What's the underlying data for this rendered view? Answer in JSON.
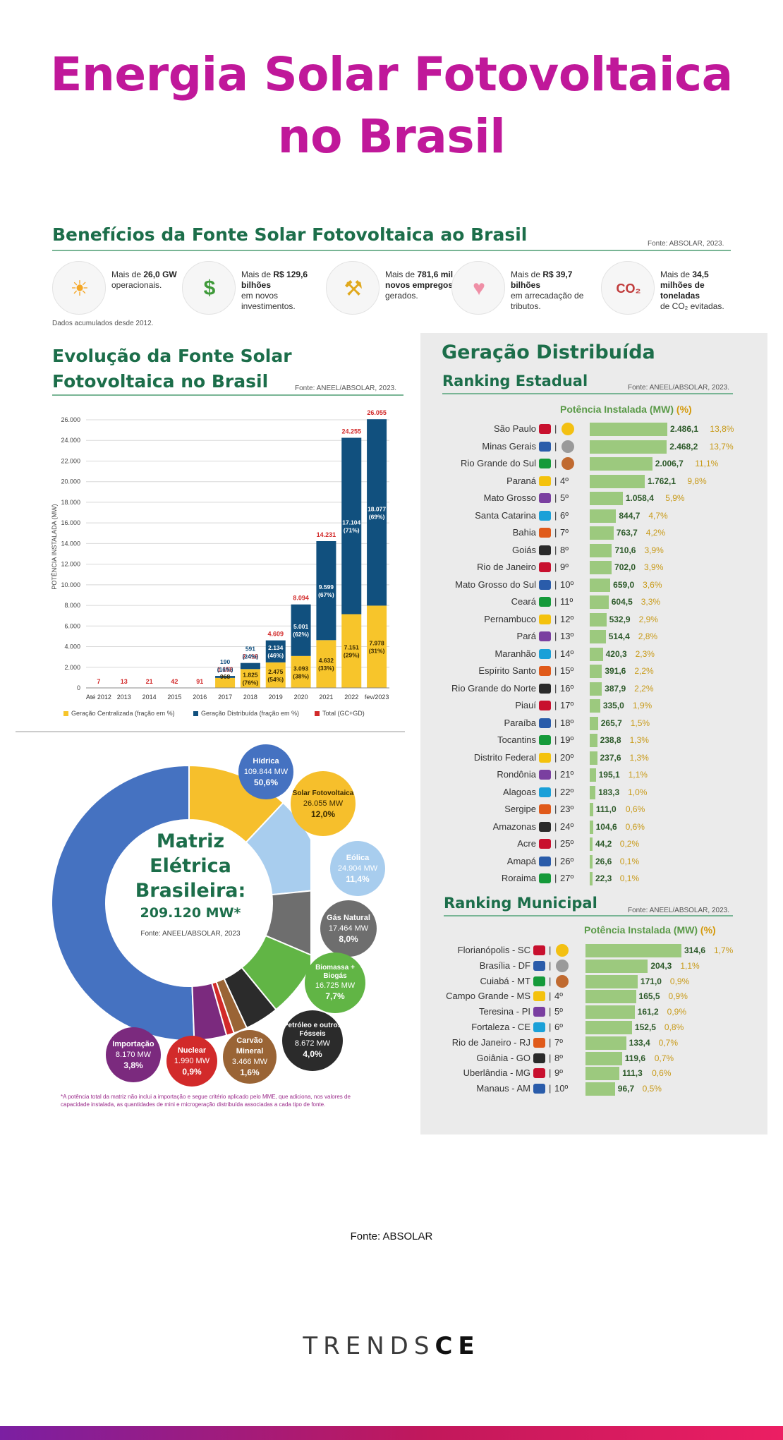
{
  "title_line1": "Energia Solar Fotovoltaica",
  "title_line2": "no Brasil",
  "beneficios": {
    "title": "Benefícios da Fonte Solar Fotovoltaica ao Brasil",
    "fonte": "Fonte: ABSOLAR, 2023.",
    "note": "Dados acumulados desde 2012.",
    "items": [
      {
        "pre": "Mais de",
        "bold": "26,0 GW",
        "post": "operacionais.",
        "icon": "solar-panel-icon"
      },
      {
        "pre": "Mais de",
        "bold": "R$ 129,6 bilhões",
        "post": "em novos investimentos.",
        "icon": "money-icon"
      },
      {
        "pre": "Mais de",
        "bold": "781,6 mil novos empregos",
        "post": "gerados.",
        "icon": "worker-icon"
      },
      {
        "pre": "Mais de",
        "bold": "R$ 39,7 bilhões",
        "post": "em arrecadação de tributos.",
        "icon": "piggy-bank-icon"
      },
      {
        "pre": "Mais de",
        "bold": "34,5 milhões de toneladas",
        "post": "de CO₂ evitadas.",
        "icon": "co2-icon"
      }
    ]
  },
  "evolucao": {
    "title_line1": "Evolução da Fonte Solar",
    "title_line2": "Fotovoltaica no Brasil",
    "fonte": "Fonte: ANEEL/ABSOLAR, 2023."
  },
  "chart_data": [
    {
      "type": "bar",
      "ylabel": "POTÊNCIA INSTALADA (MW)",
      "ylim": [
        0,
        26000
      ],
      "yticks": [
        "0",
        "2.000",
        "4.000",
        "6.000",
        "8.000",
        "10.000",
        "12.000",
        "14.000",
        "16.000",
        "18.000",
        "20.000",
        "22.000",
        "24.000",
        "26.000"
      ],
      "categories": [
        "Até 2012",
        "2013",
        "2014",
        "2015",
        "2016",
        "2017",
        "2018",
        "2019",
        "2020",
        "2021",
        "2022",
        "fev/2023"
      ],
      "series": [
        {
          "name": "Geração Centralizada (fração em %)",
          "color": "#f7c52b",
          "values": [
            0,
            0,
            0,
            0,
            0,
            968,
            1825,
            2475,
            3093,
            4632,
            7151,
            7978
          ],
          "labels": [
            "",
            "",
            "",
            "",
            "",
            "968",
            "1.825\n(76%)",
            "2.475\n(54%)",
            "3.093\n(38%)",
            "4.632\n(33%)",
            "7.151\n(29%)",
            "7.978\n(31%)"
          ]
        },
        {
          "name": "Geração Distribuída (fração em %)",
          "color": "#11507e",
          "values": [
            0,
            0,
            0,
            0,
            0,
            190,
            591,
            2134,
            5001,
            9599,
            17104,
            18077
          ],
          "labels": [
            "",
            "",
            "",
            "",
            "",
            "190\n(16%)",
            "591\n(24%)",
            "2.134\n(46%)",
            "5.001\n(62%)",
            "9.599\n(67%)",
            "17.104\n(71%)",
            "18.077\n(69%)"
          ]
        }
      ],
      "totals": {
        "name": "Total (GC+GD)",
        "color": "#d22a2a",
        "values": [
          "7",
          "13",
          "21",
          "42",
          "91",
          "1.158",
          "2.416",
          "4.609",
          "8.094",
          "14.231",
          "24.255",
          "26.055"
        ]
      }
    },
    {
      "type": "pie",
      "title": "Matriz Elétrica Brasileira:",
      "total": "209.120 MW*",
      "source": "Fonte: ANEEL/ABSOLAR, 2023",
      "slices": [
        {
          "name": "Hídrica",
          "mw": "109.844 MW",
          "pct": "50,6%",
          "value": 50.6,
          "color": "#4572c1"
        },
        {
          "name": "Solar Fotovoltaica",
          "mw": "26.055 MW",
          "pct": "12,0%",
          "value": 12.0,
          "color": "#f6bf2c"
        },
        {
          "name": "Eólica",
          "mw": "24.904 MW",
          "pct": "11,4%",
          "value": 11.4,
          "color": "#a8cdee"
        },
        {
          "name": "Gás Natural",
          "mw": "17.464 MW",
          "pct": "8,0%",
          "value": 8.0,
          "color": "#6e6e6e"
        },
        {
          "name": "Biomassa + Biogás",
          "mw": "16.725 MW",
          "pct": "7,7%",
          "value": 7.7,
          "color": "#61b545"
        },
        {
          "name": "Petróleo e outros Fósseis",
          "mw": "8.672 MW",
          "pct": "4,0%",
          "value": 4.0,
          "color": "#2b2b2b"
        },
        {
          "name": "Carvão Mineral",
          "mw": "3.466 MW",
          "pct": "1,6%",
          "value": 1.6,
          "color": "#9a6435"
        },
        {
          "name": "Nuclear",
          "mw": "1.990 MW",
          "pct": "0,9%",
          "value": 0.9,
          "color": "#d22a2a"
        },
        {
          "name": "Importação",
          "mw": "8.170 MW",
          "pct": "3,8%",
          "value": 3.8,
          "color": "#7b2a7e"
        }
      ],
      "footnote": "*A potência total da matriz não inclui a importação e segue critério aplicado pelo MME, que adiciona, nos valores de capacidade instalada, as quantidades de mini e microgeração distribuída associadas a cada tipo de fonte."
    }
  ],
  "gd": {
    "title": "Geração Distribuída",
    "estadual": {
      "title": "Ranking Estadual",
      "fonte": "Fonte: ANEEL/ABSOLAR, 2023.",
      "header": "Potência Instalada (MW)",
      "header_pct": "(%)",
      "rows": [
        {
          "name": "São Paulo",
          "pos": "1º",
          "value": 2486.1,
          "val_text": "2.486,1",
          "pct": "13,8%"
        },
        {
          "name": "Minas Gerais",
          "pos": "2º",
          "value": 2468.2,
          "val_text": "2.468,2",
          "pct": "13,7%"
        },
        {
          "name": "Rio Grande do Sul",
          "pos": "3º",
          "value": 2006.7,
          "val_text": "2.006,7",
          "pct": "11,1%"
        },
        {
          "name": "Paraná",
          "pos": "4º",
          "value": 1762.1,
          "val_text": "1.762,1",
          "pct": "9,8%"
        },
        {
          "name": "Mato Grosso",
          "pos": "5º",
          "value": 1058.4,
          "val_text": "1.058,4",
          "pct": "5,9%"
        },
        {
          "name": "Santa Catarina",
          "pos": "6º",
          "value": 844.7,
          "val_text": "844,7",
          "pct": "4,7%"
        },
        {
          "name": "Bahia",
          "pos": "7º",
          "value": 763.7,
          "val_text": "763,7",
          "pct": "4,2%"
        },
        {
          "name": "Goiás",
          "pos": "8º",
          "value": 710.6,
          "val_text": "710,6",
          "pct": "3,9%"
        },
        {
          "name": "Rio de Janeiro",
          "pos": "9º",
          "value": 702.0,
          "val_text": "702,0",
          "pct": "3,9%"
        },
        {
          "name": "Mato Grosso do Sul",
          "pos": "10º",
          "value": 659.0,
          "val_text": "659,0",
          "pct": "3,6%"
        },
        {
          "name": "Ceará",
          "pos": "11º",
          "value": 604.5,
          "val_text": "604,5",
          "pct": "3,3%"
        },
        {
          "name": "Pernambuco",
          "pos": "12º",
          "value": 532.9,
          "val_text": "532,9",
          "pct": "2,9%"
        },
        {
          "name": "Pará",
          "pos": "13º",
          "value": 514.4,
          "val_text": "514,4",
          "pct": "2,8%"
        },
        {
          "name": "Maranhão",
          "pos": "14º",
          "value": 420.3,
          "val_text": "420,3",
          "pct": "2,3%"
        },
        {
          "name": "Espírito Santo",
          "pos": "15º",
          "value": 391.6,
          "val_text": "391,6",
          "pct": "2,2%"
        },
        {
          "name": "Rio Grande do Norte",
          "pos": "16º",
          "value": 387.9,
          "val_text": "387,9",
          "pct": "2,2%"
        },
        {
          "name": "Piauí",
          "pos": "17º",
          "value": 335.0,
          "val_text": "335,0",
          "pct": "1,9%"
        },
        {
          "name": "Paraíba",
          "pos": "18º",
          "value": 265.7,
          "val_text": "265,7",
          "pct": "1,5%"
        },
        {
          "name": "Tocantins",
          "pos": "19º",
          "value": 238.8,
          "val_text": "238,8",
          "pct": "1,3%"
        },
        {
          "name": "Distrito Federal",
          "pos": "20º",
          "value": 237.6,
          "val_text": "237,6",
          "pct": "1,3%"
        },
        {
          "name": "Rondônia",
          "pos": "21º",
          "value": 195.1,
          "val_text": "195,1",
          "pct": "1,1%"
        },
        {
          "name": "Alagoas",
          "pos": "22º",
          "value": 183.3,
          "val_text": "183,3",
          "pct": "1,0%"
        },
        {
          "name": "Sergipe",
          "pos": "23º",
          "value": 111.0,
          "val_text": "111,0",
          "pct": "0,6%"
        },
        {
          "name": "Amazonas",
          "pos": "24º",
          "value": 104.6,
          "val_text": "104,6",
          "pct": "0,6%"
        },
        {
          "name": "Acre",
          "pos": "25º",
          "value": 44.2,
          "val_text": "44,2",
          "pct": "0,2%"
        },
        {
          "name": "Amapá",
          "pos": "26º",
          "value": 26.6,
          "val_text": "26,6",
          "pct": "0,1%"
        },
        {
          "name": "Roraima",
          "pos": "27º",
          "value": 22.3,
          "val_text": "22,3",
          "pct": "0,1%"
        }
      ]
    },
    "municipal": {
      "title": "Ranking Municipal",
      "fonte": "Fonte: ANEEL/ABSOLAR, 2023.",
      "header": "Potência Instalada (MW)",
      "header_pct": "(%)",
      "rows": [
        {
          "name": "Florianópolis - SC",
          "pos": "1º",
          "value": 314.6,
          "val_text": "314,6",
          "pct": "1,7%"
        },
        {
          "name": "Brasília - DF",
          "pos": "2º",
          "value": 204.3,
          "val_text": "204,3",
          "pct": "1,1%"
        },
        {
          "name": "Cuiabá - MT",
          "pos": "3º",
          "value": 171.0,
          "val_text": "171,0",
          "pct": "0,9%"
        },
        {
          "name": "Campo Grande - MS",
          "pos": "4º",
          "value": 165.5,
          "val_text": "165,5",
          "pct": "0,9%"
        },
        {
          "name": "Teresina - PI",
          "pos": "5º",
          "value": 161.2,
          "val_text": "161,2",
          "pct": "0,9%"
        },
        {
          "name": "Fortaleza - CE",
          "pos": "6º",
          "value": 152.5,
          "val_text": "152,5",
          "pct": "0,8%"
        },
        {
          "name": "Rio de Janeiro - RJ",
          "pos": "7º",
          "value": 133.4,
          "val_text": "133,4",
          "pct": "0,7%"
        },
        {
          "name": "Goiânia - GO",
          "pos": "8º",
          "value": 119.6,
          "val_text": "119,6",
          "pct": "0,7%"
        },
        {
          "name": "Uberlândia - MG",
          "pos": "9º",
          "value": 111.3,
          "val_text": "111,3",
          "pct": "0,6%"
        },
        {
          "name": "Manaus - AM",
          "pos": "10º",
          "value": 96.7,
          "val_text": "96,7",
          "pct": "0,5%"
        }
      ]
    }
  },
  "fonte_bottom": "Fonte: ABSOLAR",
  "logo_light": "TRENDS",
  "logo_bold": "CE"
}
